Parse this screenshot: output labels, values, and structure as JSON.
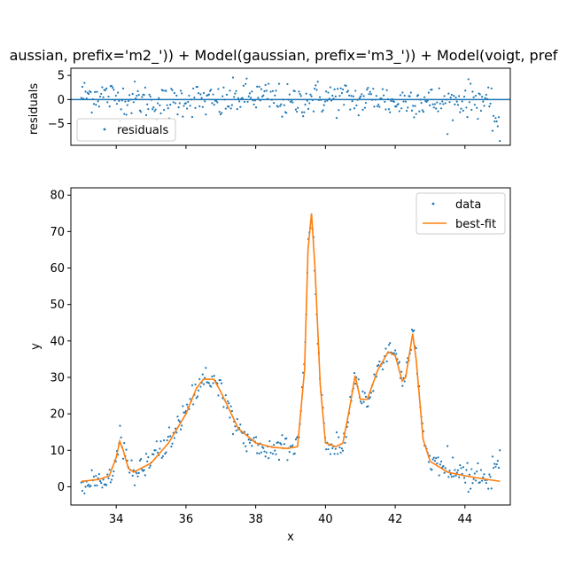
{
  "figure": {
    "title": "aussian, prefix='m2_')) + Model(gaussian, prefix='m3_')) + Model(voigt, pref"
  },
  "chart_data": [
    {
      "type": "scatter",
      "panel": "residuals",
      "ylabel": "residuals",
      "xlim": [
        32.7,
        45.3
      ],
      "ylim": [
        -9.5,
        6.5
      ],
      "yticks": [
        -5,
        0,
        5
      ],
      "xticks": [
        34,
        36,
        38,
        40,
        42,
        44
      ],
      "show_xtick_labels": false,
      "legend": {
        "placement": "lower-left",
        "entries": [
          "residuals"
        ]
      },
      "zero_line": 0,
      "colors": {
        "points": "#1f77b4",
        "zero_line": "#1f77b4"
      },
      "series": [
        {
          "name": "residuals",
          "x_start": 33.0,
          "x_end": 45.0,
          "n_points": 401,
          "values_sample": [
            [
              33.0,
              1.5
            ],
            [
              33.5,
              1.8
            ],
            [
              34.0,
              0.5
            ],
            [
              34.5,
              0.2
            ],
            [
              35.0,
              -0.8
            ],
            [
              35.5,
              -1.5
            ],
            [
              36.0,
              0.5
            ],
            [
              36.5,
              -0.5
            ],
            [
              37.0,
              -1.5
            ],
            [
              37.5,
              0.8
            ],
            [
              38.0,
              1.0
            ],
            [
              38.5,
              0.2
            ],
            [
              39.0,
              -1.5
            ],
            [
              39.5,
              0.5
            ],
            [
              40.0,
              0.5
            ],
            [
              40.5,
              0.5
            ],
            [
              41.0,
              -0.5
            ],
            [
              41.5,
              1.0
            ],
            [
              42.0,
              -1.5
            ],
            [
              42.5,
              0.5
            ],
            [
              43.0,
              -1.0
            ],
            [
              43.5,
              -1.5
            ],
            [
              44.0,
              0.3
            ],
            [
              44.5,
              0.2
            ],
            [
              45.0,
              -8.5
            ]
          ]
        }
      ]
    },
    {
      "type": "scatter+line",
      "panel": "main",
      "xlabel": "x",
      "ylabel": "y",
      "xlim": [
        32.7,
        45.3
      ],
      "ylim": [
        -5,
        82
      ],
      "xticks": [
        34,
        36,
        38,
        40,
        42,
        44
      ],
      "yticks": [
        0,
        10,
        20,
        30,
        40,
        50,
        60,
        70,
        80
      ],
      "legend": {
        "placement": "top-right",
        "entries": [
          "data",
          "best-fit"
        ]
      },
      "colors": {
        "data": "#1f77b4",
        "best_fit": "#ff7f0e"
      },
      "series": [
        {
          "name": "best-fit",
          "x": [
            33.0,
            33.5,
            33.8,
            34.0,
            34.1,
            34.2,
            34.35,
            34.5,
            35.0,
            35.5,
            36.0,
            36.3,
            36.5,
            36.8,
            37.0,
            37.5,
            38.0,
            38.5,
            38.9,
            39.2,
            39.4,
            39.5,
            39.6,
            39.7,
            39.85,
            40.0,
            40.3,
            40.5,
            40.7,
            40.85,
            41.0,
            41.2,
            41.5,
            41.8,
            42.0,
            42.2,
            42.3,
            42.5,
            42.6,
            42.8,
            43.0,
            43.5,
            44.0,
            44.5,
            45.0
          ],
          "y": [
            1.5,
            2.0,
            3.0,
            8.0,
            12.5,
            10.0,
            5.0,
            4.0,
            6.5,
            12.0,
            20.0,
            27.0,
            29.5,
            29.5,
            26.0,
            16.0,
            12.0,
            10.8,
            10.5,
            11.0,
            32.0,
            65.0,
            75.0,
            60.0,
            28.0,
            12.0,
            11.0,
            12.0,
            22.0,
            30.5,
            24.0,
            24.0,
            32.0,
            37.0,
            36.0,
            29.0,
            30.0,
            42.0,
            35.0,
            13.0,
            7.0,
            4.0,
            3.0,
            2.2,
            1.5
          ]
        },
        {
          "name": "data",
          "x_start": 33.0,
          "x_end": 45.0,
          "n_points": 401,
          "values_sample": [
            [
              33.0,
              -0.2
            ],
            [
              34.1,
              12.9
            ],
            [
              34.5,
              3.0
            ],
            [
              36.5,
              31.5
            ],
            [
              38.0,
              11.0
            ],
            [
              39.6,
              77.8
            ],
            [
              40.0,
              9.0
            ],
            [
              40.85,
              32.0
            ],
            [
              41.8,
              42.5
            ],
            [
              42.5,
              45.0
            ],
            [
              43.0,
              9.0
            ],
            [
              45.0,
              10.0
            ]
          ]
        }
      ]
    }
  ]
}
